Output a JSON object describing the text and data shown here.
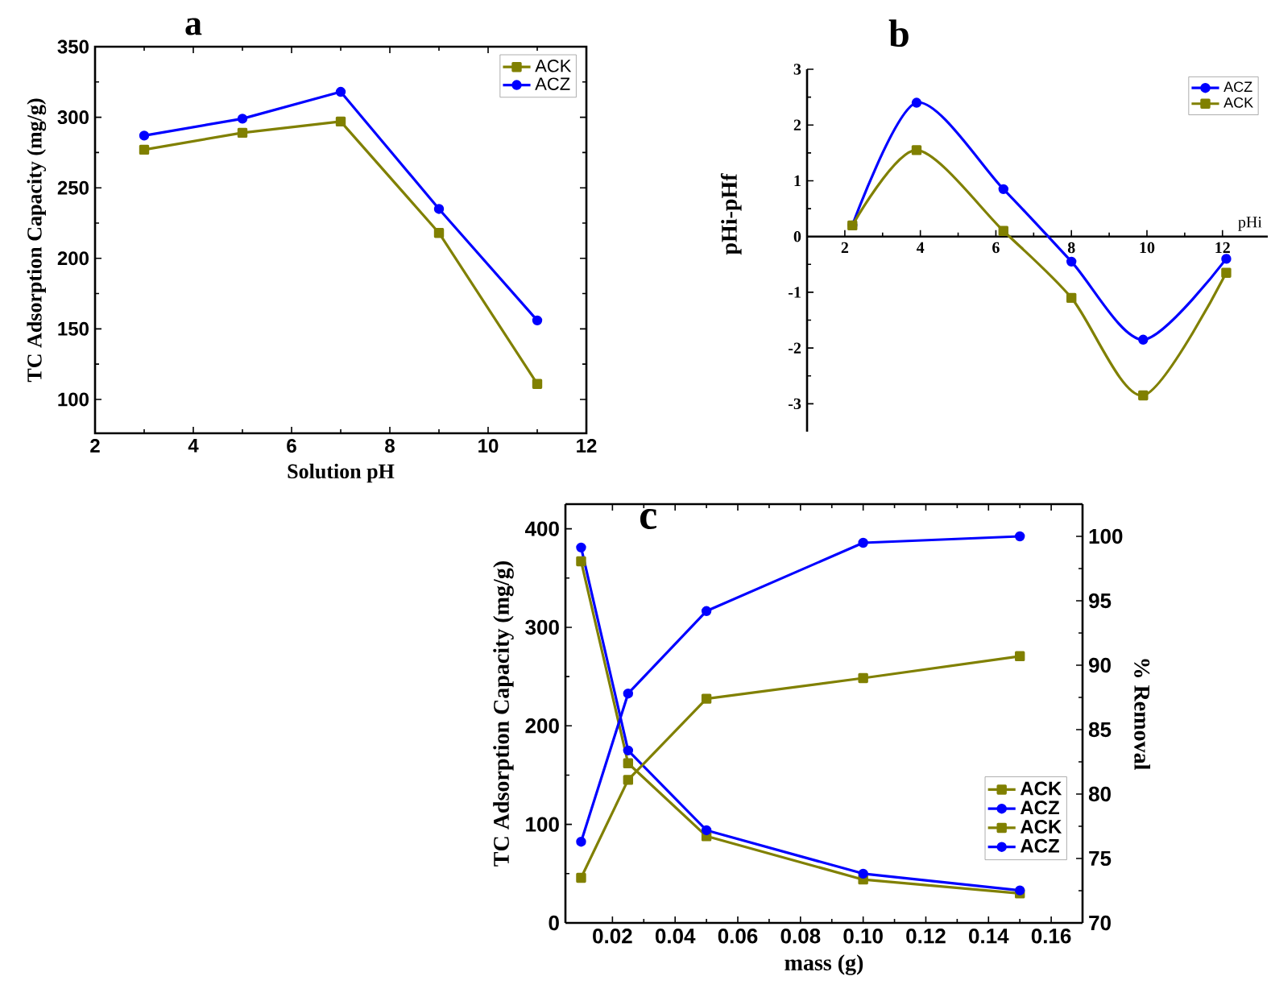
{
  "chart_data": [
    {
      "type": "line",
      "title": "a",
      "xlabel": "Solution pH",
      "ylabel": "TC Adsorption Capacity (mg/g)",
      "x": [
        3,
        5,
        7,
        9,
        11
      ],
      "xlim": [
        2,
        12
      ],
      "ylim": [
        76,
        350
      ],
      "xticks": [
        2,
        4,
        6,
        8,
        10,
        12
      ],
      "yticks": [
        100,
        150,
        200,
        250,
        300,
        350
      ],
      "legend": "top right",
      "series": [
        {
          "name": "ACK",
          "color": "#808000",
          "marker": "square",
          "values": [
            277,
            289,
            297,
            218,
            111
          ]
        },
        {
          "name": "ACZ",
          "color": "#0000ff",
          "marker": "circle",
          "values": [
            287,
            299,
            318,
            235,
            156
          ]
        }
      ]
    },
    {
      "type": "line",
      "title": "b",
      "xlabel": "pHi",
      "ylabel": "pHi-pHf",
      "x": [
        2.2,
        3.9,
        6.2,
        8.0,
        9.9,
        12.1
      ],
      "xlim": [
        1,
        13.2
      ],
      "ylim": [
        -3.5,
        3
      ],
      "xticks": [
        2,
        4,
        6,
        8,
        10,
        12
      ],
      "yticks": [
        -3,
        -2,
        -1,
        0,
        1,
        2,
        3
      ],
      "legend": "top right",
      "series": [
        {
          "name": "ACZ",
          "color": "#0000ff",
          "marker": "circle",
          "values": [
            0.2,
            2.4,
            0.85,
            -0.45,
            -1.85,
            -0.4
          ]
        },
        {
          "name": "ACK",
          "color": "#808000",
          "marker": "square",
          "values": [
            0.2,
            1.55,
            0.1,
            -1.1,
            -2.85,
            -0.65
          ]
        }
      ]
    },
    {
      "type": "line",
      "title": "c",
      "xlabel": "mass (g)",
      "ylabel": "TC Adsorption Capacity (mg/g)",
      "y2label": "% Removal",
      "x": [
        0.01,
        0.025,
        0.05,
        0.1,
        0.15
      ],
      "xlim": [
        0.005,
        0.17
      ],
      "ylim": [
        0,
        425
      ],
      "y2lim": [
        70,
        102.5
      ],
      "xticks": [
        0.02,
        0.04,
        0.06,
        0.08,
        {
          "value": 0.1,
          "label": "0.10"
        },
        0.12,
        0.14,
        0.16
      ],
      "yticks": [
        0,
        100,
        200,
        300,
        400
      ],
      "y2ticks": [
        70,
        75,
        80,
        85,
        90,
        95,
        100
      ],
      "legend": "bottom right",
      "series": [
        {
          "name": "ACK",
          "color": "#808000",
          "marker": "square",
          "values": [
            367,
            162,
            88,
            44,
            30
          ]
        },
        {
          "name": "ACZ",
          "color": "#0000ff",
          "marker": "circle",
          "values": [
            381,
            175,
            94,
            50,
            33
          ]
        },
        {
          "name": "ACK",
          "color": "#808000",
          "marker": "square",
          "axis": "y2",
          "values": [
            73.5,
            81.1,
            87.4,
            89.0,
            90.7
          ]
        },
        {
          "name": "ACZ",
          "color": "#0000ff",
          "marker": "circle",
          "axis": "y2",
          "values": [
            76.3,
            87.8,
            94.2,
            99.5,
            100
          ]
        }
      ]
    }
  ]
}
